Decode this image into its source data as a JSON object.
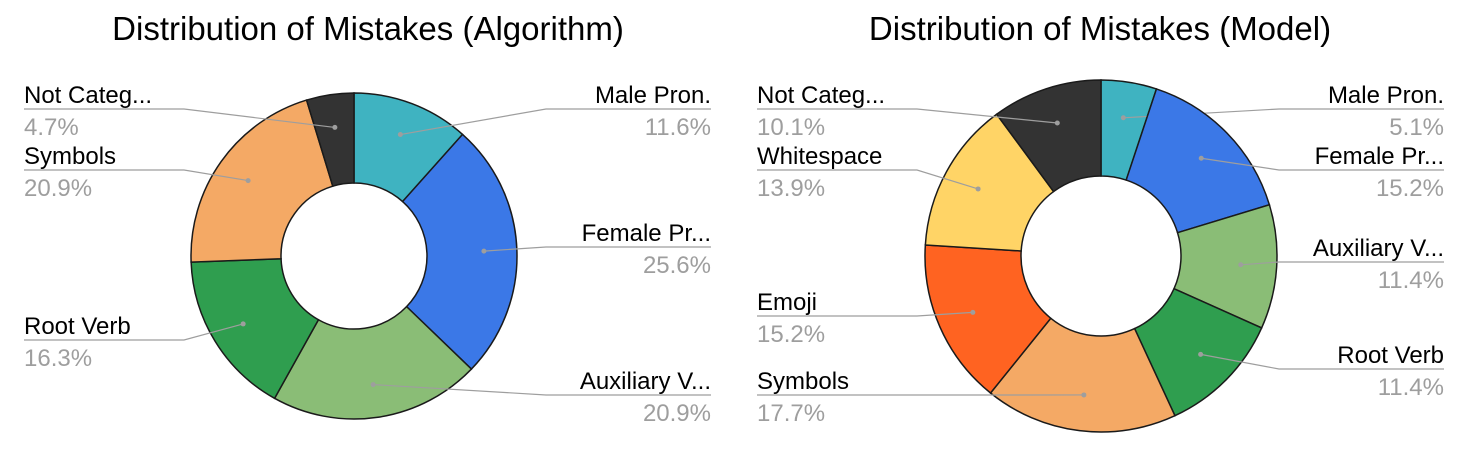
{
  "chart_data": [
    {
      "type": "pie",
      "title": "Distribution of Mistakes (Algorithm)",
      "slices": [
        {
          "label": "Male Pron.",
          "value_label": "11.6%",
          "value": 11.6,
          "color": "#3fb3c1"
        },
        {
          "label": "Female Pr...",
          "value_label": "25.6%",
          "value": 25.6,
          "color": "#3b78e7"
        },
        {
          "label": "Auxiliary V...",
          "value_label": "20.9%",
          "value": 20.9,
          "color": "#8abd76"
        },
        {
          "label": "Root Verb",
          "value_label": "16.3%",
          "value": 16.3,
          "color": "#2f9e4f"
        },
        {
          "label": "Symbols",
          "value_label": "20.9%",
          "value": 20.9,
          "color": "#f4a965"
        },
        {
          "label": "Not Categ...",
          "value_label": "4.7%",
          "value": 4.7,
          "color": "#333333"
        }
      ]
    },
    {
      "type": "pie",
      "title": "Distribution of Mistakes (Model)",
      "slices": [
        {
          "label": "Male Pron.",
          "value_label": "5.1%",
          "value": 5.1,
          "color": "#3fb3c1"
        },
        {
          "label": "Female Pr...",
          "value_label": "15.2%",
          "value": 15.2,
          "color": "#3b78e7"
        },
        {
          "label": "Auxiliary V...",
          "value_label": "11.4%",
          "value": 11.4,
          "color": "#8abd76"
        },
        {
          "label": "Root Verb",
          "value_label": "11.4%",
          "value": 11.4,
          "color": "#2f9e4f"
        },
        {
          "label": "Symbols",
          "value_label": "17.7%",
          "value": 17.7,
          "color": "#f4a965"
        },
        {
          "label": "Emoji",
          "value_label": "15.2%",
          "value": 15.2,
          "color": "#ff6321"
        },
        {
          "label": "Whitespace",
          "value_label": "13.9%",
          "value": 13.9,
          "color": "#ffd466"
        },
        {
          "label": "Not Categ...",
          "value_label": "10.1%",
          "value": 10.1,
          "color": "#333333"
        }
      ]
    }
  ]
}
